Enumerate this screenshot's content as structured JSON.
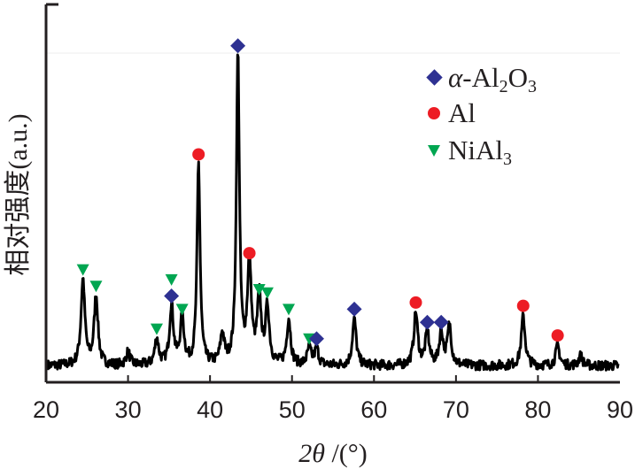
{
  "chart_data": {
    "type": "line",
    "title": "",
    "xlabel": "2θ /(°)",
    "xlabel_parts": {
      "theta": "2θ",
      "unit": " /(°)"
    },
    "ylabel": "相对强度(a.u.)",
    "xlim": [
      20,
      90
    ],
    "ylim": [
      0,
      100
    ],
    "xticks": [
      "20",
      "30",
      "40",
      "50",
      "60",
      "70",
      "80",
      "90"
    ],
    "grid": false,
    "legend_placement": "top-right",
    "legend": [
      {
        "name": "α-Al2O3",
        "parts": [
          "α",
          "-Al",
          "2",
          "O",
          "3"
        ],
        "marker": "diamond",
        "color": "#2e3192"
      },
      {
        "name": "Al",
        "parts": [
          "Al"
        ],
        "marker": "circle",
        "color": "#ed1c24"
      },
      {
        "name": "NiAl3",
        "parts": [
          "NiAl",
          "3"
        ],
        "marker": "triangle-down",
        "color": "#00a651"
      }
    ],
    "baseline": 5,
    "peaks": [
      {
        "x": 24.5,
        "y": 31
      },
      {
        "x": 26.1,
        "y": 26
      },
      {
        "x": 30.0,
        "y": 9
      },
      {
        "x": 33.5,
        "y": 13
      },
      {
        "x": 35.3,
        "y": 23
      },
      {
        "x": 36.6,
        "y": 19
      },
      {
        "x": 38.6,
        "y": 66
      },
      {
        "x": 41.5,
        "y": 14
      },
      {
        "x": 43.4,
        "y": 99
      },
      {
        "x": 44.8,
        "y": 36
      },
      {
        "x": 46.0,
        "y": 25
      },
      {
        "x": 47.0,
        "y": 22
      },
      {
        "x": 49.6,
        "y": 19
      },
      {
        "x": 52.1,
        "y": 10
      },
      {
        "x": 53.0,
        "y": 10
      },
      {
        "x": 57.6,
        "y": 19
      },
      {
        "x": 65.1,
        "y": 21
      },
      {
        "x": 66.5,
        "y": 15
      },
      {
        "x": 68.2,
        "y": 15
      },
      {
        "x": 69.2,
        "y": 17
      },
      {
        "x": 78.2,
        "y": 20
      },
      {
        "x": 82.4,
        "y": 11
      },
      {
        "x": 85.2,
        "y": 8
      }
    ],
    "markers": [
      {
        "phase": "NiAl3",
        "x": 24.5,
        "y": 31
      },
      {
        "phase": "NiAl3",
        "x": 26.1,
        "y": 26
      },
      {
        "phase": "NiAl3",
        "x": 33.5,
        "y": 13
      },
      {
        "phase": "NiAl3",
        "x": 35.3,
        "y": 28
      },
      {
        "phase": "α-Al2O3",
        "x": 35.3,
        "y": 23
      },
      {
        "phase": "NiAl3",
        "x": 36.6,
        "y": 19
      },
      {
        "phase": "Al",
        "x": 38.6,
        "y": 66
      },
      {
        "phase": "α-Al2O3",
        "x": 43.4,
        "y": 99
      },
      {
        "phase": "Al",
        "x": 44.8,
        "y": 36
      },
      {
        "phase": "NiAl3",
        "x": 46.0,
        "y": 25
      },
      {
        "phase": "NiAl3",
        "x": 47.0,
        "y": 24
      },
      {
        "phase": "NiAl3",
        "x": 49.6,
        "y": 19
      },
      {
        "phase": "NiAl3",
        "x": 52.1,
        "y": 10
      },
      {
        "phase": "α-Al2O3",
        "x": 53.0,
        "y": 10
      },
      {
        "phase": "α-Al2O3",
        "x": 57.6,
        "y": 19
      },
      {
        "phase": "Al",
        "x": 65.1,
        "y": 21
      },
      {
        "phase": "α-Al2O3",
        "x": 66.5,
        "y": 15
      },
      {
        "phase": "α-Al2O3",
        "x": 68.2,
        "y": 15
      },
      {
        "phase": "Al",
        "x": 78.2,
        "y": 20
      },
      {
        "phase": "Al",
        "x": 82.4,
        "y": 11
      }
    ]
  }
}
